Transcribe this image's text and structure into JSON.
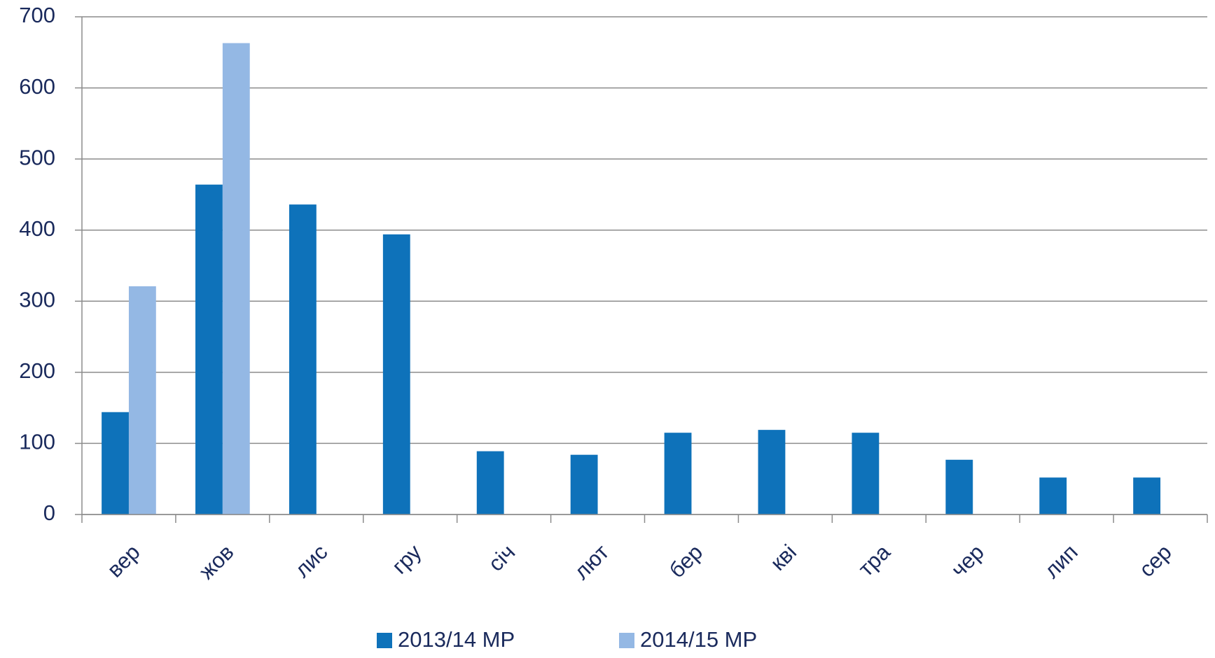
{
  "chart_data": {
    "type": "bar",
    "categories": [
      "вер",
      "жов",
      "лис",
      "гру",
      "січ",
      "лют",
      "бер",
      "кві",
      "тра",
      "чер",
      "лип",
      "сер"
    ],
    "series": [
      {
        "name": "2013/14 МР",
        "color": "#0e72ba",
        "values": [
          144,
          464,
          436,
          394,
          89,
          84,
          115,
          119,
          115,
          77,
          52,
          52
        ]
      },
      {
        "name": "2014/15 МР",
        "color": "#94b8e4",
        "values": [
          321,
          663,
          null,
          null,
          null,
          null,
          null,
          null,
          null,
          null,
          null,
          null
        ]
      }
    ],
    "ylim": [
      0,
      700
    ],
    "yticks": [
      0,
      100,
      200,
      300,
      400,
      500,
      600,
      700
    ],
    "grid": true,
    "legend": "bottom"
  }
}
